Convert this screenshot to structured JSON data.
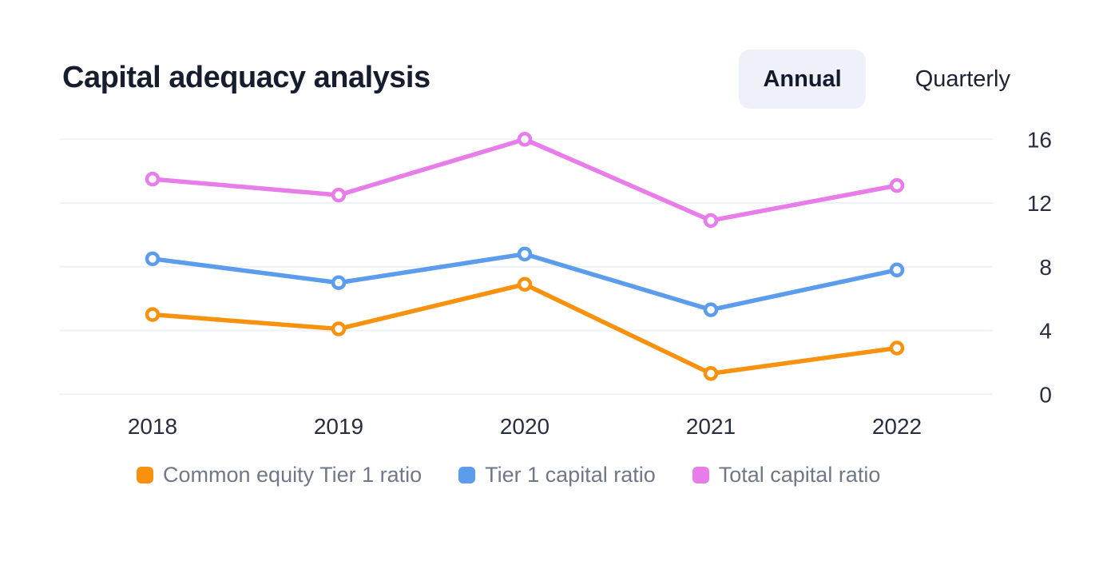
{
  "header": {
    "title": "Capital adequacy analysis"
  },
  "toggle": {
    "options": [
      {
        "label": "Annual",
        "selected": true
      },
      {
        "label": "Quarterly",
        "selected": false
      }
    ]
  },
  "chart_data": {
    "type": "line",
    "title": "Capital adequacy analysis",
    "categories": [
      "2018",
      "2019",
      "2020",
      "2021",
      "2022"
    ],
    "series": [
      {
        "name": "Common equity Tier 1 ratio",
        "color": "#F8920E",
        "values": [
          5.0,
          4.1,
          6.9,
          1.3,
          2.9
        ]
      },
      {
        "name": "Tier 1 capital ratio",
        "color": "#5B9CEC",
        "values": [
          8.5,
          7.0,
          8.8,
          5.3,
          7.8
        ]
      },
      {
        "name": "Total capital ratio",
        "color": "#E87CE8",
        "values": [
          13.5,
          12.5,
          16.0,
          10.9,
          13.1
        ]
      }
    ],
    "y_ticks": [
      0,
      4,
      8,
      12,
      16
    ],
    "ylim": [
      0,
      16
    ],
    "xlabel": "",
    "ylabel": "",
    "grid": "horizontal",
    "y_axis_side": "right",
    "legend_position": "bottom",
    "marker": "open-circle"
  },
  "colors": {
    "grid": "#edf2f7",
    "title_text": "#161d2e",
    "axis_text": "#272e3f",
    "legend_text": "#6f7889",
    "selected_pill_bg": "#eef1f9",
    "background": "#ffffff"
  }
}
